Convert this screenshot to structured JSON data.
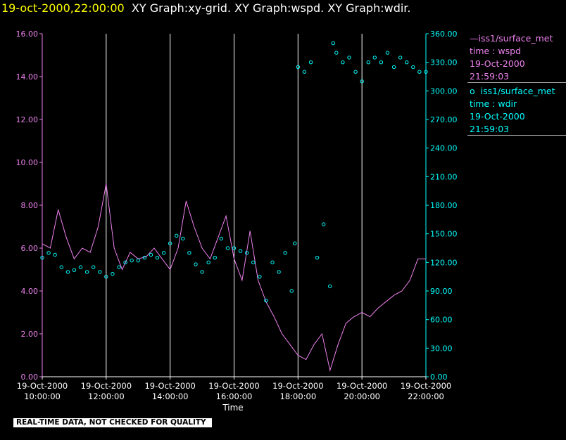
{
  "header": {
    "timestamp": "19-oct-2000,22:00:00",
    "graphs": "XY Graph:xy-grid.  XY Graph:wspd.  XY Graph:wdir."
  },
  "legend": {
    "wspd": {
      "marker": "—",
      "source": "iss1/surface_met",
      "var": "time : wspd",
      "date": "19-Oct-2000",
      "time": "21:59:03"
    },
    "wdir": {
      "marker": "o",
      "source": "iss1/surface_met",
      "var": "time : wdir",
      "date": "19-Oct-2000",
      "time": "21:59:03"
    }
  },
  "footer": {
    "quality_note": "REAL-TIME DATA, NOT CHECKED FOR QUALITY"
  },
  "colors": {
    "wspd": "#ee82ee",
    "wdir": "#00ffff",
    "grid": "#ffffff",
    "title_time": "#ffff00",
    "background": "#000000"
  },
  "chart_data": {
    "type": "line",
    "xlabel": "Time",
    "x_unit": "hours",
    "xlim": [
      10,
      22
    ],
    "x_ticks": [
      {
        "value": 10,
        "date": "19-Oct-2000",
        "time": "10:00:00"
      },
      {
        "value": 12,
        "date": "19-Oct-2000",
        "time": "12:00:00"
      },
      {
        "value": 14,
        "date": "19-Oct-2000",
        "time": "14:00:00"
      },
      {
        "value": 16,
        "date": "19-Oct-2000",
        "time": "16:00:00"
      },
      {
        "value": 18,
        "date": "19-Oct-2000",
        "time": "18:00:00"
      },
      {
        "value": 20,
        "date": "19-Oct-2000",
        "time": "20:00:00"
      },
      {
        "value": 22,
        "date": "19-Oct-2000",
        "time": "22:00:00"
      }
    ],
    "y_left": {
      "ylim": [
        0,
        16
      ],
      "ticks": [
        "0.00",
        "2.00",
        "4.00",
        "6.00",
        "8.00",
        "10.00",
        "12.00",
        "14.00",
        "16.00"
      ]
    },
    "y_right": {
      "ylim": [
        0,
        360
      ],
      "ticks": [
        "0.00",
        "30.00",
        "60.00",
        "90.00",
        "120.00",
        "150.00",
        "180.00",
        "210.00",
        "240.00",
        "270.00",
        "300.00",
        "330.00",
        "360.00"
      ]
    },
    "grid": "vertical",
    "series": [
      {
        "name": "iss1/surface_met  time : wspd",
        "axis": "left",
        "style": "line",
        "x": [
          10,
          10.25,
          10.5,
          10.75,
          11,
          11.25,
          11.5,
          11.75,
          12,
          12.25,
          12.5,
          12.75,
          13,
          13.25,
          13.5,
          13.75,
          14,
          14.25,
          14.5,
          14.75,
          15,
          15.25,
          15.5,
          15.75,
          16,
          16.25,
          16.5,
          16.75,
          17,
          17.25,
          17.5,
          17.75,
          18,
          18.25,
          18.5,
          18.75,
          19,
          19.25,
          19.5,
          19.75,
          20,
          20.25,
          20.5,
          20.75,
          21,
          21.25,
          21.5,
          21.75,
          22
        ],
        "y": [
          6.2,
          6.0,
          7.8,
          6.5,
          5.5,
          6.0,
          5.8,
          7.0,
          9.0,
          6.0,
          5.0,
          5.8,
          5.5,
          5.6,
          6.0,
          5.5,
          5.0,
          6.0,
          8.2,
          7.0,
          6.0,
          5.5,
          6.5,
          7.5,
          5.5,
          4.5,
          6.8,
          4.5,
          3.5,
          2.8,
          2.0,
          1.5,
          1.0,
          0.8,
          1.5,
          2.0,
          0.3,
          1.5,
          2.5,
          2.8,
          3.0,
          2.8,
          3.2,
          3.5,
          3.8,
          4.0,
          4.5,
          5.5,
          5.5
        ]
      },
      {
        "name": "iss1/surface_met  time : wdir",
        "axis": "right",
        "style": "scatter",
        "x": [
          10,
          10.2,
          10.4,
          10.6,
          10.8,
          11,
          11.2,
          11.4,
          11.6,
          11.8,
          12,
          12.2,
          12.4,
          12.6,
          12.8,
          13,
          13.2,
          13.4,
          13.6,
          13.8,
          14,
          14.2,
          14.4,
          14.6,
          14.8,
          15,
          15.2,
          15.4,
          15.6,
          15.8,
          16,
          16.2,
          16.4,
          16.6,
          16.8,
          17,
          17.2,
          17.4,
          17.6,
          17.8,
          17.9,
          18,
          18.2,
          18.4,
          18.6,
          18.8,
          19,
          19.1,
          19.2,
          19.4,
          19.6,
          19.8,
          20,
          20.2,
          20.4,
          20.6,
          20.8,
          21,
          21.2,
          21.4,
          21.6,
          21.8,
          22
        ],
        "y": [
          125,
          130,
          128,
          115,
          110,
          112,
          115,
          110,
          115,
          110,
          105,
          108,
          115,
          120,
          122,
          122,
          125,
          128,
          125,
          130,
          140,
          148,
          145,
          130,
          118,
          110,
          120,
          125,
          145,
          135,
          135,
          132,
          130,
          120,
          105,
          80,
          120,
          110,
          130,
          90,
          140,
          325,
          320,
          330,
          125,
          160,
          95,
          350,
          340,
          330,
          335,
          320,
          310,
          330,
          335,
          330,
          340,
          325,
          335,
          330,
          325,
          320,
          320
        ]
      }
    ]
  }
}
